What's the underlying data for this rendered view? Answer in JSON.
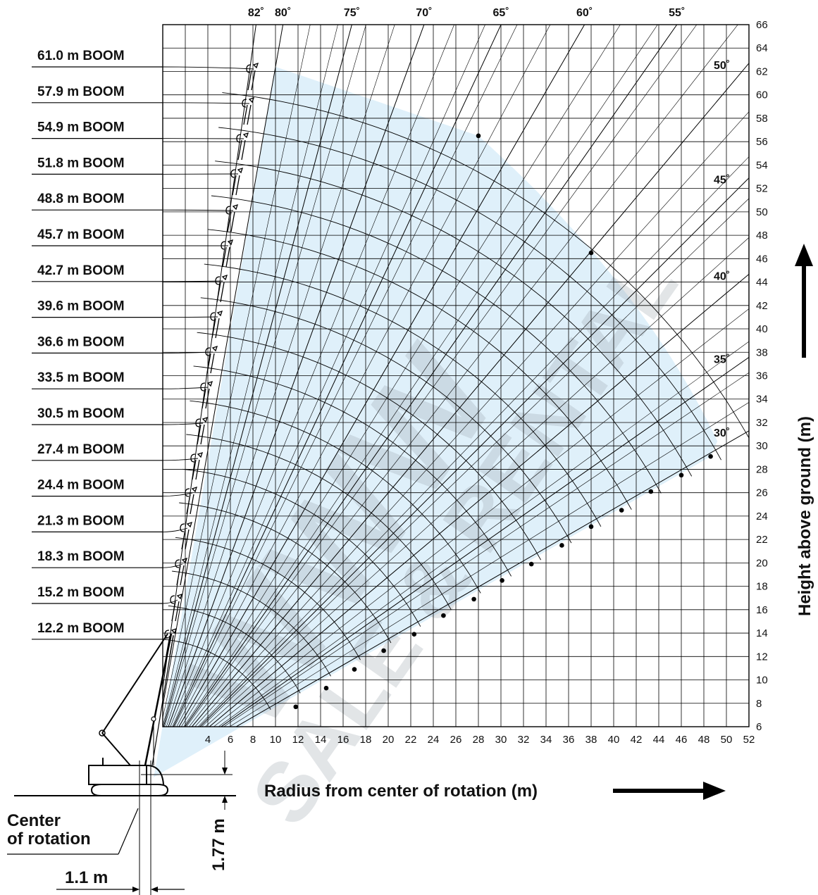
{
  "chart_data": {
    "type": "line",
    "title": "",
    "xlabel": "Radius from center of rotation (m)",
    "ylabel": "Height above ground (m)",
    "xlim": [
      0,
      52
    ],
    "ylim": [
      6,
      66
    ],
    "grid": true,
    "fill_color": "#dff0fa",
    "x_ticks": [
      "4",
      "6",
      "8",
      "10",
      "12",
      "14",
      "16",
      "18",
      "20",
      "22",
      "24",
      "26",
      "28",
      "30",
      "32",
      "34",
      "36",
      "38",
      "40",
      "42",
      "44",
      "46",
      "48",
      "50",
      "52"
    ],
    "y_ticks": [
      "6",
      "8",
      "10",
      "12",
      "14",
      "16",
      "18",
      "20",
      "22",
      "24",
      "26",
      "28",
      "30",
      "32",
      "34",
      "36",
      "38",
      "40",
      "42",
      "44",
      "46",
      "48",
      "50",
      "52",
      "54",
      "56",
      "58",
      "60",
      "62",
      "64",
      "66"
    ],
    "angle_labels_top": [
      "82˚",
      "80˚",
      "75˚",
      "70˚",
      "65˚",
      "60˚",
      "55˚"
    ],
    "angle_labels_right": [
      "50˚",
      "45˚",
      "40˚",
      "35˚",
      "30˚"
    ],
    "boom_lengths": [
      {
        "label": "61.0 m BOOM",
        "length": 61.0
      },
      {
        "label": "57.9 m BOOM",
        "length": 57.9
      },
      {
        "label": "54.9 m BOOM",
        "length": 54.9
      },
      {
        "label": "51.8 m BOOM",
        "length": 51.8
      },
      {
        "label": "48.8 m BOOM",
        "length": 48.8
      },
      {
        "label": "45.7 m BOOM",
        "length": 45.7
      },
      {
        "label": "42.7 m BOOM",
        "length": 42.7
      },
      {
        "label": "39.6 m BOOM",
        "length": 39.6
      },
      {
        "label": "36.6 m BOOM",
        "length": 36.6
      },
      {
        "label": "33.5 m BOOM",
        "length": 33.5
      },
      {
        "label": "30.5 m BOOM",
        "length": 30.5
      },
      {
        "label": "27.4 m BOOM",
        "length": 27.4
      },
      {
        "label": "24.4 m BOOM",
        "length": 24.4
      },
      {
        "label": "21.3 m BOOM",
        "length": 21.3
      },
      {
        "label": "18.3 m BOOM",
        "length": 18.3
      },
      {
        "label": "15.2 m BOOM",
        "length": 15.2
      },
      {
        "label": "12.2 m BOOM",
        "length": 12.2
      }
    ],
    "end_points": [
      {
        "x": 11.8,
        "y": 7.7
      },
      {
        "x": 14.5,
        "y": 9.3
      },
      {
        "x": 17.0,
        "y": 10.9
      },
      {
        "x": 19.6,
        "y": 12.5
      },
      {
        "x": 22.3,
        "y": 13.9
      },
      {
        "x": 24.9,
        "y": 15.5
      },
      {
        "x": 27.6,
        "y": 16.9
      },
      {
        "x": 30.1,
        "y": 18.5
      },
      {
        "x": 32.7,
        "y": 19.9
      },
      {
        "x": 35.4,
        "y": 21.5
      },
      {
        "x": 38.0,
        "y": 23.1
      },
      {
        "x": 40.7,
        "y": 24.5
      },
      {
        "x": 43.3,
        "y": 26.1
      },
      {
        "x": 46.0,
        "y": 27.5
      },
      {
        "x": 48.6,
        "y": 29.1
      },
      {
        "x": 38.0,
        "y": 46.5
      },
      {
        "x": 28.0,
        "y": 56.5
      }
    ]
  },
  "annotations": {
    "center_of_rotation_line1": "Center",
    "center_of_rotation_line2": "of rotation",
    "dim_vertical": "1.77 m",
    "dim_horizontal": "1.1 m"
  },
  "watermark": {
    "line1": "WWW",
    "line2": "SALE & RENTAL"
  }
}
